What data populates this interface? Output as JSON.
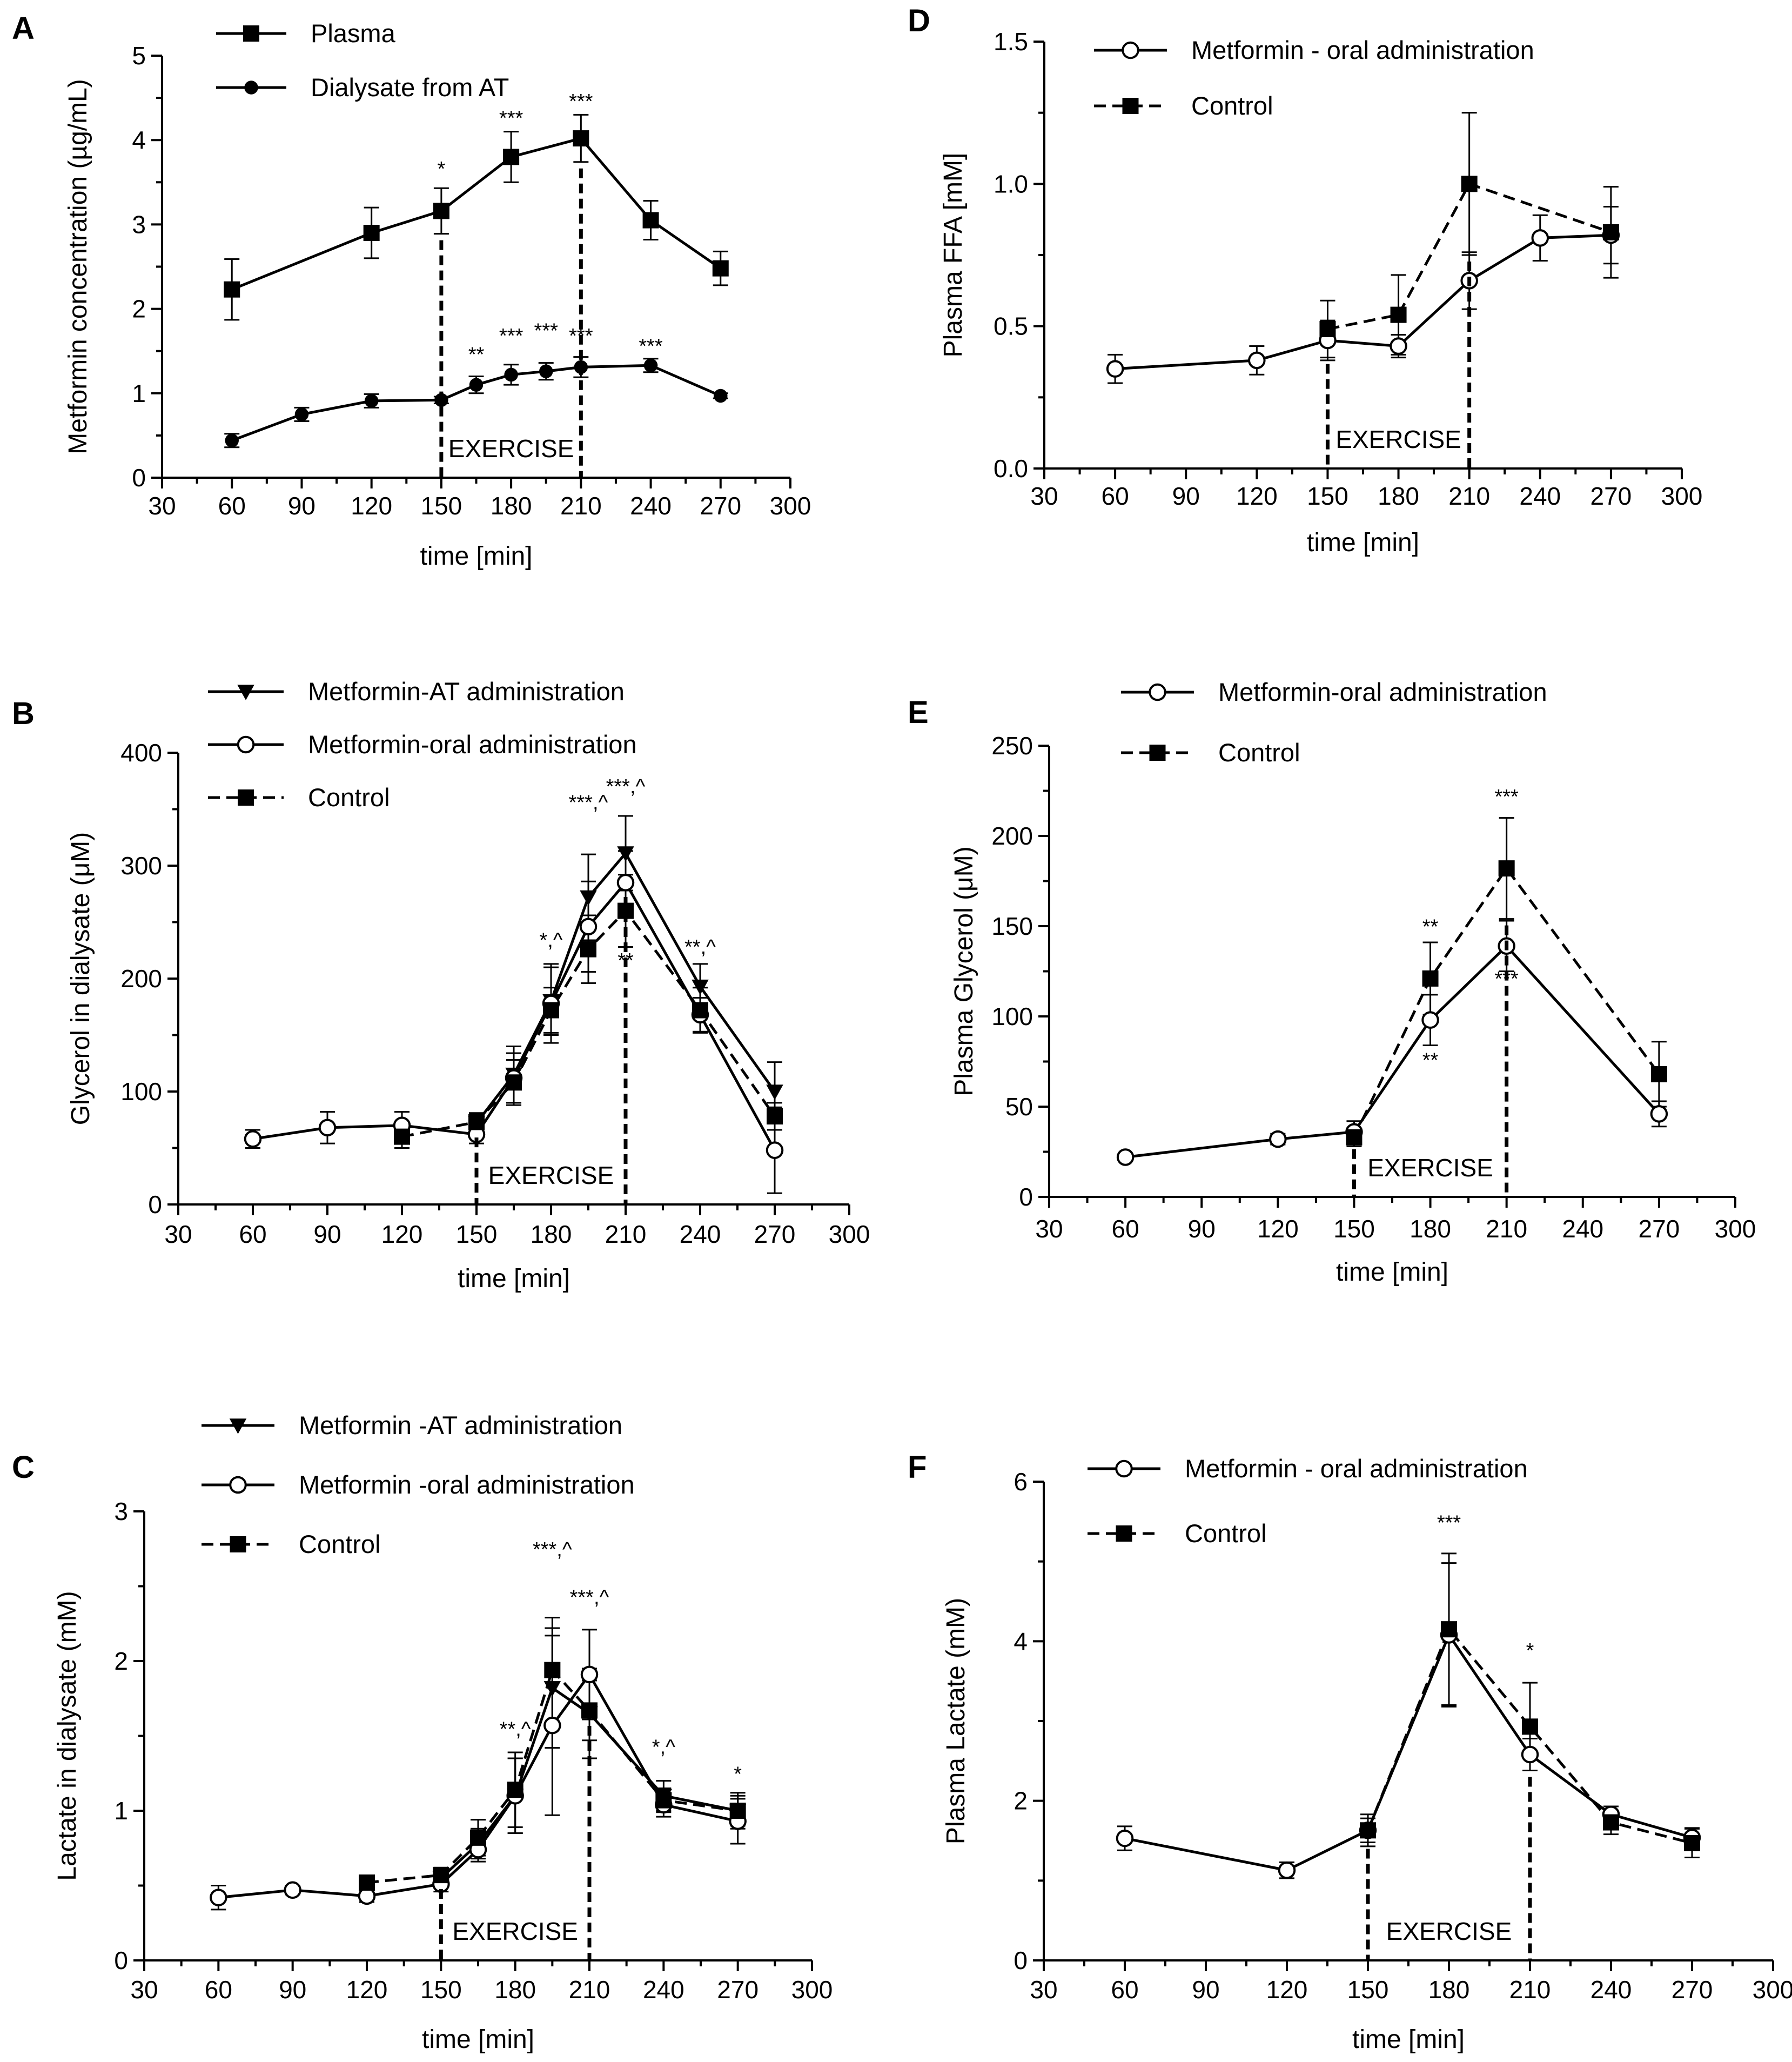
{
  "chart_data": [
    {
      "panel": "A",
      "type": "line",
      "xlabel": "time [min]",
      "ylabel": "Metformin concentration (µg/mL)",
      "xlim": [
        30,
        300
      ],
      "xticks": [
        30,
        60,
        90,
        120,
        150,
        180,
        210,
        240,
        270,
        300
      ],
      "ylim": [
        0,
        5
      ],
      "yticks": [
        0,
        1,
        2,
        3,
        4,
        5
      ],
      "exercise": {
        "label": "EXERCISE",
        "start": 150,
        "end": 210
      },
      "legend": [
        {
          "name": "Plasma",
          "marker": "square-filled",
          "dash": false
        },
        {
          "name": "Dialysate from AT",
          "marker": "circle-filled",
          "dash": false
        }
      ],
      "series": [
        {
          "name": "Plasma",
          "marker": "square-filled",
          "dash": false,
          "x": [
            60,
            120,
            150,
            180,
            210,
            240,
            270
          ],
          "y": [
            2.23,
            2.9,
            3.16,
            3.8,
            4.02,
            3.05,
            2.48
          ],
          "err": [
            0.36,
            0.3,
            0.27,
            0.3,
            0.28,
            0.23,
            0.2
          ]
        },
        {
          "name": "Dialysate from AT",
          "marker": "circle-filled",
          "dash": false,
          "x": [
            60,
            90,
            120,
            150,
            165,
            180,
            195,
            210,
            240,
            270
          ],
          "y": [
            0.44,
            0.75,
            0.91,
            0.92,
            1.1,
            1.22,
            1.26,
            1.31,
            1.33,
            0.97
          ],
          "err": [
            0.08,
            0.08,
            0.08,
            0.04,
            0.1,
            0.12,
            0.1,
            0.12,
            0.08,
            0.03
          ]
        }
      ],
      "annotations": [
        {
          "text": "*",
          "x": 150,
          "y": 3.58
        },
        {
          "text": "***",
          "x": 180,
          "y": 4.18
        },
        {
          "text": "***",
          "x": 210,
          "y": 4.38
        },
        {
          "text": "**",
          "x": 165,
          "y": 1.38
        },
        {
          "text": "***",
          "x": 180,
          "y": 1.6
        },
        {
          "text": "***",
          "x": 195,
          "y": 1.66
        },
        {
          "text": "***",
          "x": 210,
          "y": 1.6
        },
        {
          "text": "***",
          "x": 240,
          "y": 1.48
        }
      ]
    },
    {
      "panel": "B",
      "type": "line",
      "xlabel": "time [min]",
      "ylabel": "Glycerol in dialysate (μM)",
      "xlim": [
        30,
        300
      ],
      "xticks": [
        30,
        60,
        90,
        120,
        150,
        180,
        210,
        240,
        270,
        300
      ],
      "ylim": [
        0,
        400
      ],
      "yticks": [
        0,
        100,
        200,
        300,
        400
      ],
      "exercise": {
        "label": "EXERCISE",
        "start": 150,
        "end": 210
      },
      "legend": [
        {
          "name": "Metformin-AT administration",
          "marker": "triangle-down",
          "dash": false
        },
        {
          "name": "Metformin-oral administration",
          "marker": "circle-open",
          "dash": false
        },
        {
          "name": "Control",
          "marker": "square-filled",
          "dash": true
        }
      ],
      "series": [
        {
          "name": "Metformin-AT administration",
          "marker": "triangle-down",
          "dash": false,
          "x": [
            150,
            165,
            180,
            195,
            210,
            240,
            270
          ],
          "y": [
            72,
            115,
            180,
            272,
            311,
            193,
            100
          ],
          "err": [
            8,
            25,
            30,
            38,
            33,
            20,
            26
          ]
        },
        {
          "name": "Metformin-oral administration",
          "marker": "circle-open",
          "dash": false,
          "x": [
            60,
            90,
            120,
            150,
            165,
            180,
            195,
            210,
            240,
            270
          ],
          "y": [
            58,
            68,
            70,
            62,
            112,
            178,
            246,
            285,
            168,
            48
          ],
          "err": [
            8,
            14,
            12,
            8,
            22,
            35,
            40,
            28,
            15,
            38
          ]
        },
        {
          "name": "Control",
          "marker": "square-filled",
          "dash": true,
          "x": [
            120,
            150,
            165,
            180,
            195,
            210,
            240,
            270
          ],
          "y": [
            60,
            73,
            108,
            172,
            226,
            260,
            172,
            78
          ],
          "err": [
            10,
            8,
            20,
            20,
            30,
            32,
            20,
            12
          ]
        }
      ],
      "annotations": [
        {
          "text": "*,^",
          "x": 180,
          "y": 228
        },
        {
          "text": "***,^",
          "x": 195,
          "y": 350
        },
        {
          "text": "***,^",
          "x": 210,
          "y": 364
        },
        {
          "text": "**",
          "x": 210,
          "y": 210
        },
        {
          "text": "**,^",
          "x": 240,
          "y": 222
        }
      ]
    },
    {
      "panel": "C",
      "type": "line",
      "xlabel": "time [min]",
      "ylabel": "Lactate in dialysate (mM)",
      "xlim": [
        30,
        300
      ],
      "xticks": [
        30,
        60,
        90,
        120,
        150,
        180,
        210,
        240,
        270,
        300
      ],
      "ylim": [
        0,
        3
      ],
      "yticks": [
        0,
        1,
        2,
        3
      ],
      "exercise": {
        "label": "EXERCISE",
        "start": 150,
        "end": 210
      },
      "legend": [
        {
          "name": "Metformin -AT administration",
          "marker": "triangle-down",
          "dash": false
        },
        {
          "name": "Metformin -oral  administration",
          "marker": "circle-open",
          "dash": false
        },
        {
          "name": "Control",
          "marker": "square-filled",
          "dash": true
        }
      ],
      "series": [
        {
          "name": "Metformin -AT administration",
          "marker": "triangle-down",
          "dash": false,
          "x": [
            150,
            165,
            180,
            195,
            210,
            240,
            270
          ],
          "y": [
            0.55,
            0.78,
            1.1,
            1.82,
            1.65,
            1.1,
            1.0
          ],
          "err": [
            0.05,
            0.1,
            0.25,
            0.4,
            0.3,
            0.1,
            0.1
          ]
        },
        {
          "name": "Metformin -oral  administration",
          "marker": "circle-open",
          "dash": false,
          "x": [
            60,
            90,
            120,
            150,
            165,
            180,
            195,
            210,
            240,
            270
          ],
          "y": [
            0.42,
            0.47,
            0.43,
            0.51,
            0.74,
            1.1,
            1.57,
            1.91,
            1.04,
            0.93
          ],
          "err": [
            0.08,
            0.03,
            0.04,
            0.05,
            0.08,
            0.25,
            0.6,
            0.3,
            0.08,
            0.15
          ]
        },
        {
          "name": "Control",
          "marker": "square-filled",
          "dash": true,
          "x": [
            120,
            150,
            165,
            180,
            195,
            210,
            240,
            270
          ],
          "y": [
            0.52,
            0.57,
            0.82,
            1.14,
            1.94,
            1.67,
            1.07,
            1.0
          ],
          "err": [
            0.04,
            0.05,
            0.12,
            0.25,
            0.35,
            0.2,
            0.08,
            0.12
          ]
        }
      ],
      "annotations": [
        {
          "text": "**,^",
          "x": 180,
          "y": 1.5
        },
        {
          "text": "***,^",
          "x": 195,
          "y": 2.7
        },
        {
          "text": "***,^",
          "x": 210,
          "y": 2.38
        },
        {
          "text": "*,^",
          "x": 240,
          "y": 1.38
        },
        {
          "text": "*",
          "x": 270,
          "y": 1.2
        }
      ]
    },
    {
      "panel": "D",
      "type": "line",
      "xlabel": "time [min]",
      "ylabel": "Plasma FFA [mM]",
      "xlim": [
        30,
        300
      ],
      "xticks": [
        30,
        60,
        90,
        120,
        150,
        180,
        210,
        240,
        270,
        300
      ],
      "ylim": [
        0,
        1.5
      ],
      "yticks": [
        0.0,
        0.5,
        1.0,
        1.5
      ],
      "ytick_labels": [
        "0.0",
        "0.5",
        "1.0",
        "1.5"
      ],
      "exercise": {
        "label": "EXERCISE",
        "start": 150,
        "end": 210
      },
      "legend": [
        {
          "name": "Metformin - oral administration",
          "marker": "circle-open",
          "dash": false
        },
        {
          "name": "Control",
          "marker": "square-filled",
          "dash": true
        }
      ],
      "series": [
        {
          "name": "Metformin - oral administration",
          "marker": "circle-open",
          "dash": false,
          "x": [
            60,
            120,
            150,
            180,
            210,
            240,
            270
          ],
          "y": [
            0.35,
            0.38,
            0.45,
            0.43,
            0.66,
            0.81,
            0.82
          ],
          "err": [
            0.05,
            0.05,
            0.07,
            0.04,
            0.1,
            0.08,
            0.1
          ]
        },
        {
          "name": "Control",
          "marker": "square-filled",
          "dash": true,
          "x": [
            150,
            180,
            210,
            270
          ],
          "y": [
            0.49,
            0.54,
            1.0,
            0.83
          ],
          "err": [
            0.1,
            0.14,
            0.25,
            0.16
          ]
        }
      ],
      "annotations": []
    },
    {
      "panel": "E",
      "type": "line",
      "xlabel": "time [min]",
      "ylabel": "Plasma Glycerol (μM)",
      "xlim": [
        30,
        300
      ],
      "xticks": [
        30,
        60,
        90,
        120,
        150,
        180,
        210,
        240,
        270,
        300
      ],
      "ylim": [
        0,
        250
      ],
      "yticks": [
        0,
        50,
        100,
        150,
        200,
        250
      ],
      "exercise": {
        "label": "EXERCISE",
        "start": 150,
        "end": 210
      },
      "legend": [
        {
          "name": "Metformin-oral administration",
          "marker": "circle-open",
          "dash": false
        },
        {
          "name": "Control",
          "marker": "square-filled",
          "dash": true
        }
      ],
      "series": [
        {
          "name": "Metformin-oral administration",
          "marker": "circle-open",
          "dash": false,
          "x": [
            60,
            120,
            150,
            180,
            210,
            270
          ],
          "y": [
            22,
            32,
            36,
            98,
            139,
            46
          ],
          "err": [
            2,
            3,
            6,
            14,
            14,
            7
          ]
        },
        {
          "name": "Control",
          "marker": "square-filled",
          "dash": true,
          "x": [
            150,
            180,
            210,
            270
          ],
          "y": [
            33,
            121,
            182,
            68
          ],
          "err": [
            5,
            20,
            28,
            18
          ]
        }
      ],
      "annotations": [
        {
          "text": "**",
          "x": 180,
          "y": 146
        },
        {
          "text": "**",
          "x": 180,
          "y": 72
        },
        {
          "text": "***",
          "x": 210,
          "y": 218
        },
        {
          "text": "***",
          "x": 210,
          "y": 117
        }
      ]
    },
    {
      "panel": "F",
      "type": "line",
      "xlabel": "time [min]",
      "ylabel": "Plasma Lactate (mM)",
      "xlim": [
        30,
        300
      ],
      "xticks": [
        30,
        60,
        90,
        120,
        150,
        180,
        210,
        240,
        270,
        300
      ],
      "ylim": [
        0,
        6
      ],
      "yticks": [
        0,
        2,
        4,
        6
      ],
      "exercise": {
        "label": "EXERCISE",
        "start": 150,
        "end": 210
      },
      "legend": [
        {
          "name": "Metformin - oral administration",
          "marker": "circle-open",
          "dash": false
        },
        {
          "name": "Control",
          "marker": "square-filled",
          "dash": true
        }
      ],
      "series": [
        {
          "name": "Metformin - oral administration",
          "marker": "circle-open",
          "dash": false,
          "x": [
            60,
            120,
            150,
            180,
            210,
            240,
            270
          ],
          "y": [
            1.53,
            1.13,
            1.63,
            4.08,
            2.58,
            1.83,
            1.54
          ],
          "err": [
            0.15,
            0.1,
            0.15,
            0.9,
            0.2,
            0.1,
            0.12
          ]
        },
        {
          "name": "Control",
          "marker": "square-filled",
          "dash": true,
          "x": [
            150,
            180,
            210,
            240,
            270
          ],
          "y": [
            1.63,
            4.15,
            2.93,
            1.73,
            1.47
          ],
          "err": [
            0.2,
            0.95,
            0.55,
            0.15,
            0.18
          ]
        }
      ],
      "annotations": [
        {
          "text": "***",
          "x": 180,
          "y": 5.4
        },
        {
          "text": "*",
          "x": 210,
          "y": 3.8
        }
      ]
    }
  ]
}
